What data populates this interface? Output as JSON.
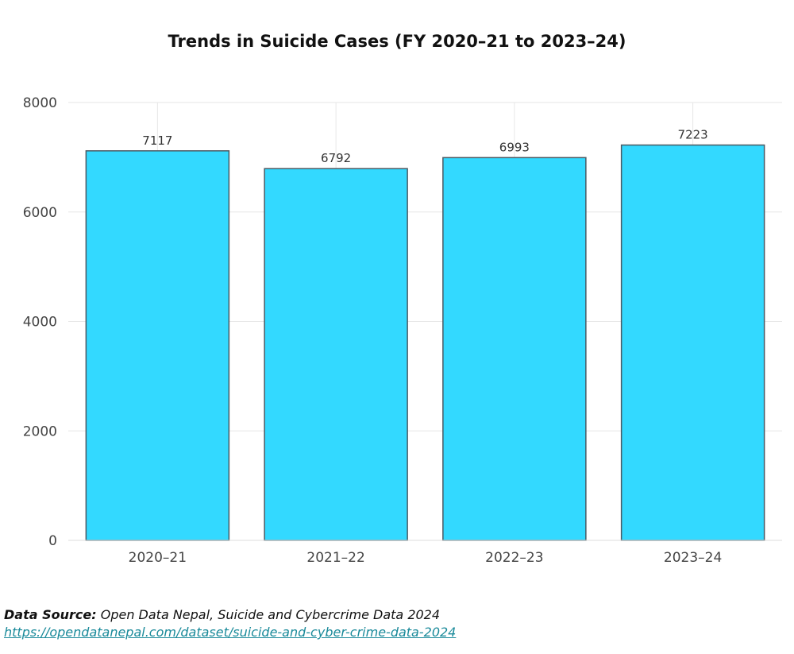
{
  "chart_data": {
    "type": "bar",
    "title": "Trends in Suicide Cases (FY 2020–21 to 2023–24)",
    "categories": [
      "2020–21",
      "2021–22",
      "2022–23",
      "2023–24"
    ],
    "values": [
      7117,
      6792,
      6993,
      7223
    ],
    "data_labels": [
      "7117",
      "6792",
      "6993",
      "7223"
    ],
    "ylim": [
      0,
      8000
    ],
    "yticks": [
      0,
      2000,
      4000,
      6000,
      8000
    ],
    "grid": true,
    "bar_color": "#33d9ff",
    "bar_edge_color": "#4a5a63"
  },
  "source": {
    "label": "Data Source:",
    "text": "Open Data Nepal, Suicide and Cybercrime Data 2024",
    "link": "https://opendatanepal.com/dataset/suicide-and-cyber-crime-data-2024"
  }
}
